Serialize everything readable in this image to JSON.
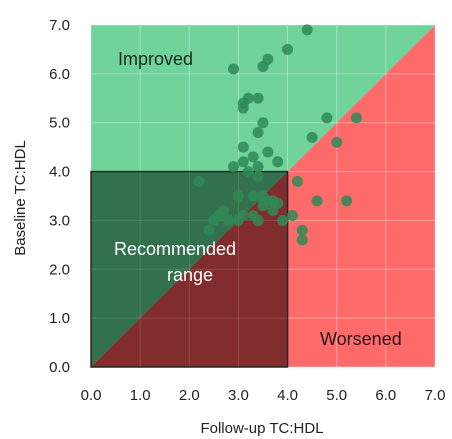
{
  "chart_data": {
    "type": "scatter",
    "xlabel": "Follow-up TC:HDL",
    "ylabel": "Baseline TC:HDL",
    "xlim": [
      0,
      7
    ],
    "ylim": [
      0,
      7
    ],
    "x_ticks": [
      "0.0",
      "1.0",
      "2.0",
      "3.0",
      "4.0",
      "5.0",
      "6.0",
      "7.0"
    ],
    "y_ticks": [
      "0.0",
      "1.0",
      "2.0",
      "3.0",
      "4.0",
      "5.0",
      "6.0",
      "7.0"
    ],
    "tick_values": [
      0,
      1,
      2,
      3,
      4,
      5,
      6,
      7
    ],
    "grid": true,
    "regions": {
      "improved": {
        "label": "Improved",
        "color": "#6fd39a"
      },
      "worsened": {
        "label": "Worsened",
        "color": "#ff6a6a"
      },
      "recommended": {
        "label_line1": "Recommended",
        "label_line2": "range",
        "upper_color": "#2f6b4a",
        "lower_color": "#7a2a2a",
        "x_max": 4,
        "y_max": 4
      }
    },
    "point_color": "#2f8a55",
    "points": [
      [
        4.4,
        6.9
      ],
      [
        4.0,
        6.5
      ],
      [
        3.6,
        6.3
      ],
      [
        3.5,
        6.15
      ],
      [
        2.9,
        6.1
      ],
      [
        3.2,
        5.5
      ],
      [
        3.4,
        5.5
      ],
      [
        3.1,
        5.4
      ],
      [
        3.1,
        5.3
      ],
      [
        4.8,
        5.1
      ],
      [
        5.4,
        5.1
      ],
      [
        3.5,
        5.0
      ],
      [
        3.4,
        4.8
      ],
      [
        4.5,
        4.7
      ],
      [
        5.0,
        4.6
      ],
      [
        3.1,
        4.5
      ],
      [
        3.6,
        4.4
      ],
      [
        3.3,
        4.3
      ],
      [
        3.1,
        4.2
      ],
      [
        3.8,
        4.2
      ],
      [
        2.9,
        4.1
      ],
      [
        3.4,
        4.1
      ],
      [
        3.2,
        4.0
      ],
      [
        3.4,
        3.9
      ],
      [
        2.2,
        3.8
      ],
      [
        4.2,
        3.8
      ],
      [
        3.0,
        3.5
      ],
      [
        3.3,
        3.5
      ],
      [
        3.5,
        3.5
      ],
      [
        3.5,
        3.4
      ],
      [
        3.6,
        3.4
      ],
      [
        3.7,
        3.4
      ],
      [
        4.6,
        3.4
      ],
      [
        5.2,
        3.4
      ],
      [
        3.8,
        3.35
      ],
      [
        3.5,
        3.3
      ],
      [
        2.7,
        3.2
      ],
      [
        3.7,
        3.2
      ],
      [
        2.6,
        3.1
      ],
      [
        3.1,
        3.1
      ],
      [
        3.3,
        3.1
      ],
      [
        4.1,
        3.1
      ],
      [
        2.5,
        3.0
      ],
      [
        2.8,
        3.0
      ],
      [
        3.0,
        3.0
      ],
      [
        3.4,
        3.0
      ],
      [
        3.9,
        3.0
      ],
      [
        2.4,
        2.8
      ],
      [
        4.3,
        2.8
      ],
      [
        4.3,
        2.6
      ]
    ]
  }
}
